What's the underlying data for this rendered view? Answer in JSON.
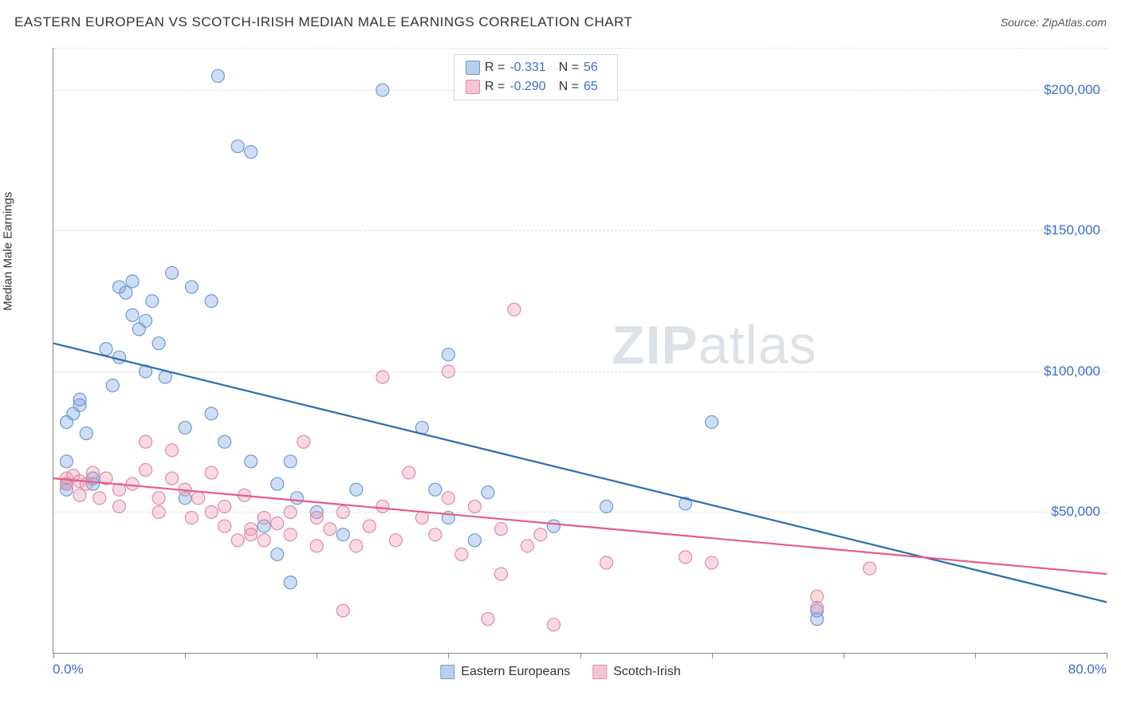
{
  "title": "EASTERN EUROPEAN VS SCOTCH-IRISH MEDIAN MALE EARNINGS CORRELATION CHART",
  "source": "Source: ZipAtlas.com",
  "ylabel": "Median Male Earnings",
  "watermark_bold": "ZIP",
  "watermark_rest": "atlas",
  "chart": {
    "type": "scatter",
    "xlim": [
      0,
      80
    ],
    "ylim": [
      0,
      215000
    ],
    "x_min_label": "0.0%",
    "x_max_label": "80.0%",
    "xtick_positions": [
      0,
      10,
      20,
      30,
      40,
      50,
      60,
      70,
      80
    ],
    "yticks": [
      {
        "value": 50000,
        "label": "$50,000"
      },
      {
        "value": 100000,
        "label": "$100,000"
      },
      {
        "value": 150000,
        "label": "$150,000"
      },
      {
        "value": 200000,
        "label": "$200,000"
      }
    ],
    "grid_color": "#dddddd",
    "background_color": "#ffffff",
    "series": [
      {
        "name": "Eastern Europeans",
        "color_fill": "rgba(120,160,220,0.35)",
        "color_stroke": "#6a9bd8",
        "line_color": "#2b6cb0",
        "swatch_fill": "#b8d0ee",
        "swatch_border": "#6a9bd8",
        "R": "-0.331",
        "N": "56",
        "trend": {
          "x1": 0,
          "y1": 110000,
          "x2": 80,
          "y2": 18000
        },
        "points": [
          [
            1,
            68000
          ],
          [
            1,
            60000
          ],
          [
            1,
            58000
          ],
          [
            1,
            82000
          ],
          [
            1.5,
            85000
          ],
          [
            2,
            88000
          ],
          [
            2,
            90000
          ],
          [
            2.5,
            78000
          ],
          [
            3,
            62000
          ],
          [
            3,
            60000
          ],
          [
            4,
            108000
          ],
          [
            4.5,
            95000
          ],
          [
            5,
            105000
          ],
          [
            5,
            130000
          ],
          [
            5.5,
            128000
          ],
          [
            6,
            120000
          ],
          [
            6,
            132000
          ],
          [
            6.5,
            115000
          ],
          [
            7,
            100000
          ],
          [
            7,
            118000
          ],
          [
            7.5,
            125000
          ],
          [
            8,
            110000
          ],
          [
            8.5,
            98000
          ],
          [
            9,
            135000
          ],
          [
            10,
            80000
          ],
          [
            10,
            55000
          ],
          [
            10.5,
            130000
          ],
          [
            12,
            125000
          ],
          [
            12,
            85000
          ],
          [
            12.5,
            205000
          ],
          [
            13,
            75000
          ],
          [
            14,
            180000
          ],
          [
            15,
            178000
          ],
          [
            15,
            68000
          ],
          [
            16,
            45000
          ],
          [
            17,
            60000
          ],
          [
            17,
            35000
          ],
          [
            18,
            25000
          ],
          [
            18.5,
            55000
          ],
          [
            18,
            68000
          ],
          [
            20,
            50000
          ],
          [
            22,
            42000
          ],
          [
            23,
            58000
          ],
          [
            25,
            200000
          ],
          [
            28,
            80000
          ],
          [
            29,
            58000
          ],
          [
            30,
            106000
          ],
          [
            30,
            48000
          ],
          [
            32,
            40000
          ],
          [
            33,
            57000
          ],
          [
            38,
            45000
          ],
          [
            42,
            52000
          ],
          [
            48,
            53000
          ],
          [
            50,
            82000
          ],
          [
            58,
            15000
          ],
          [
            58,
            12000
          ]
        ]
      },
      {
        "name": "Scotch-Irish",
        "color_fill": "rgba(235,150,175,0.35)",
        "color_stroke": "#e08aa5",
        "line_color": "#e55b87",
        "swatch_fill": "#f5c4d2",
        "swatch_border": "#e08aa5",
        "R": "-0.290",
        "N": "65",
        "trend": {
          "x1": 0,
          "y1": 62000,
          "x2": 80,
          "y2": 28000
        },
        "points": [
          [
            1,
            62000
          ],
          [
            1,
            60000
          ],
          [
            1.5,
            63000
          ],
          [
            2,
            61000
          ],
          [
            2,
            56000
          ],
          [
            2.5,
            60000
          ],
          [
            3,
            64000
          ],
          [
            3.5,
            55000
          ],
          [
            4,
            62000
          ],
          [
            5,
            58000
          ],
          [
            5,
            52000
          ],
          [
            6,
            60000
          ],
          [
            7,
            65000
          ],
          [
            7,
            75000
          ],
          [
            8,
            55000
          ],
          [
            8,
            50000
          ],
          [
            9,
            72000
          ],
          [
            9,
            62000
          ],
          [
            10,
            58000
          ],
          [
            10.5,
            48000
          ],
          [
            11,
            55000
          ],
          [
            12,
            64000
          ],
          [
            12,
            50000
          ],
          [
            13,
            52000
          ],
          [
            13,
            45000
          ],
          [
            14,
            40000
          ],
          [
            14.5,
            56000
          ],
          [
            15,
            44000
          ],
          [
            15,
            42000
          ],
          [
            16,
            48000
          ],
          [
            16,
            40000
          ],
          [
            17,
            46000
          ],
          [
            18,
            50000
          ],
          [
            18,
            42000
          ],
          [
            19,
            75000
          ],
          [
            20,
            38000
          ],
          [
            20,
            48000
          ],
          [
            21,
            44000
          ],
          [
            22,
            50000
          ],
          [
            22,
            15000
          ],
          [
            23,
            38000
          ],
          [
            24,
            45000
          ],
          [
            25,
            52000
          ],
          [
            25,
            98000
          ],
          [
            26,
            40000
          ],
          [
            27,
            64000
          ],
          [
            28,
            48000
          ],
          [
            29,
            42000
          ],
          [
            30,
            55000
          ],
          [
            30,
            100000
          ],
          [
            31,
            35000
          ],
          [
            32,
            52000
          ],
          [
            33,
            12000
          ],
          [
            34,
            28000
          ],
          [
            34,
            44000
          ],
          [
            35,
            122000
          ],
          [
            36,
            38000
          ],
          [
            37,
            42000
          ],
          [
            38,
            10000
          ],
          [
            42,
            32000
          ],
          [
            48,
            34000
          ],
          [
            50,
            32000
          ],
          [
            58,
            20000
          ],
          [
            58,
            16000
          ],
          [
            62,
            30000
          ]
        ]
      }
    ]
  },
  "legend": {
    "series1_label": "Eastern Europeans",
    "series2_label": "Scotch-Irish"
  },
  "stats_labels": {
    "R": "R =",
    "N": "N ="
  }
}
